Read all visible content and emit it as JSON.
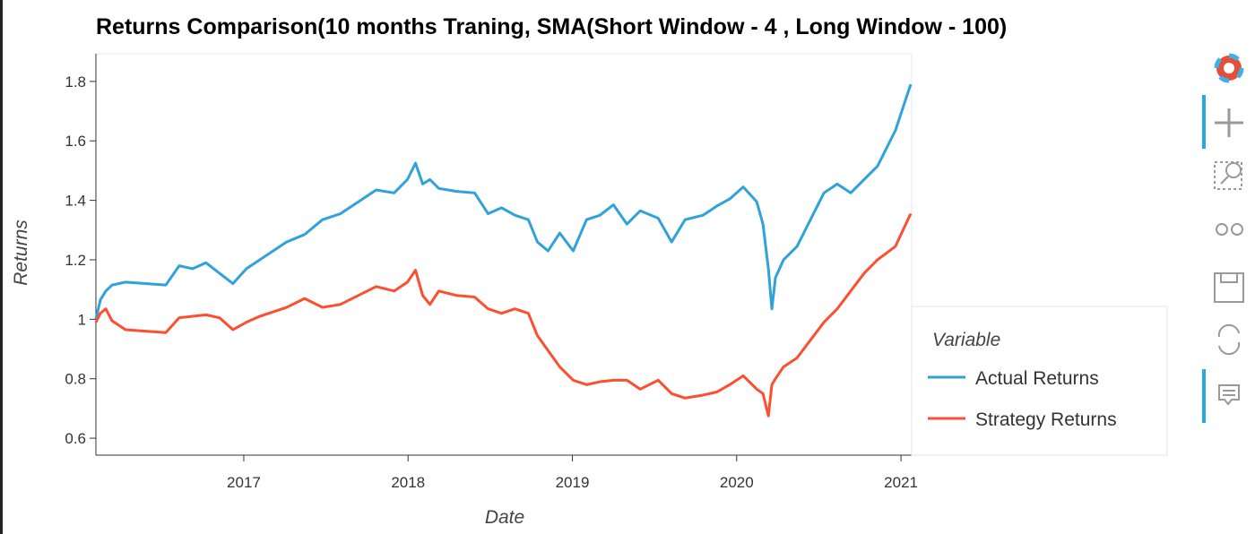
{
  "chart_data": {
    "type": "line",
    "title": "Returns Comparison(10 months Traning, SMA(Short Window - 4 , Long Window - 100)",
    "x_label": "Date",
    "y_label": "Returns",
    "legend_title": "Variable",
    "legend": "right",
    "x": [
      2016.1,
      2016.127,
      2016.16,
      2016.198,
      2016.28,
      2016.525,
      2016.607,
      2016.689,
      2016.77,
      2016.852,
      2016.934,
      2017.016,
      2017.097,
      2017.179,
      2017.261,
      2017.37,
      2017.479,
      2017.588,
      2017.697,
      2017.806,
      2017.915,
      2017.996,
      2018.045,
      2018.089,
      2018.133,
      2018.187,
      2018.296,
      2018.405,
      2018.487,
      2018.569,
      2018.65,
      2018.732,
      2018.787,
      2018.852,
      2018.923,
      2019.005,
      2019.086,
      2019.168,
      2019.25,
      2019.332,
      2019.413,
      2019.522,
      2019.604,
      2019.686,
      2019.795,
      2019.877,
      2019.958,
      2020.04,
      2020.122,
      2020.16,
      2020.193,
      2020.214,
      2020.236,
      2020.285,
      2020.367,
      2020.449,
      2020.531,
      2020.612,
      2020.694,
      2020.776,
      2020.857,
      2020.966,
      2021.059
    ],
    "series": [
      {
        "name": "Actual Returns",
        "color": "#30a2da",
        "values": [
          1.0,
          1.065,
          1.095,
          1.115,
          1.125,
          1.115,
          1.18,
          1.17,
          1.19,
          1.155,
          1.12,
          1.17,
          1.2,
          1.23,
          1.26,
          1.285,
          1.335,
          1.355,
          1.395,
          1.435,
          1.425,
          1.47,
          1.525,
          1.455,
          1.47,
          1.44,
          1.43,
          1.425,
          1.355,
          1.375,
          1.35,
          1.335,
          1.26,
          1.23,
          1.29,
          1.23,
          1.335,
          1.35,
          1.385,
          1.32,
          1.365,
          1.34,
          1.26,
          1.335,
          1.35,
          1.38,
          1.405,
          1.445,
          1.395,
          1.32,
          1.17,
          1.035,
          1.14,
          1.2,
          1.245,
          1.335,
          1.425,
          1.455,
          1.425,
          1.47,
          1.515,
          1.635,
          1.79
        ]
      },
      {
        "name": "Strategy Returns",
        "color": "#fc4f30",
        "values": [
          0.99,
          1.02,
          1.035,
          0.995,
          0.965,
          0.955,
          1.005,
          1.01,
          1.015,
          1.005,
          0.965,
          0.99,
          1.01,
          1.025,
          1.04,
          1.07,
          1.04,
          1.05,
          1.08,
          1.11,
          1.095,
          1.125,
          1.165,
          1.08,
          1.05,
          1.095,
          1.08,
          1.075,
          1.035,
          1.02,
          1.035,
          1.02,
          0.945,
          0.895,
          0.84,
          0.795,
          0.78,
          0.79,
          0.795,
          0.795,
          0.765,
          0.795,
          0.75,
          0.735,
          0.745,
          0.755,
          0.78,
          0.81,
          0.765,
          0.75,
          0.675,
          0.78,
          0.8,
          0.84,
          0.87,
          0.93,
          0.99,
          1.035,
          1.095,
          1.155,
          1.2,
          1.245,
          1.355
        ]
      }
    ],
    "xlim": [
      2016.1,
      2021.065
    ],
    "xticks": [
      2017,
      2018,
      2019,
      2020,
      2021
    ],
    "ylim": [
      0.543,
      1.893
    ],
    "yticks": [
      0.6,
      0.8,
      1,
      1.2,
      1.4,
      1.6,
      1.8
    ],
    "grid": false
  }
}
